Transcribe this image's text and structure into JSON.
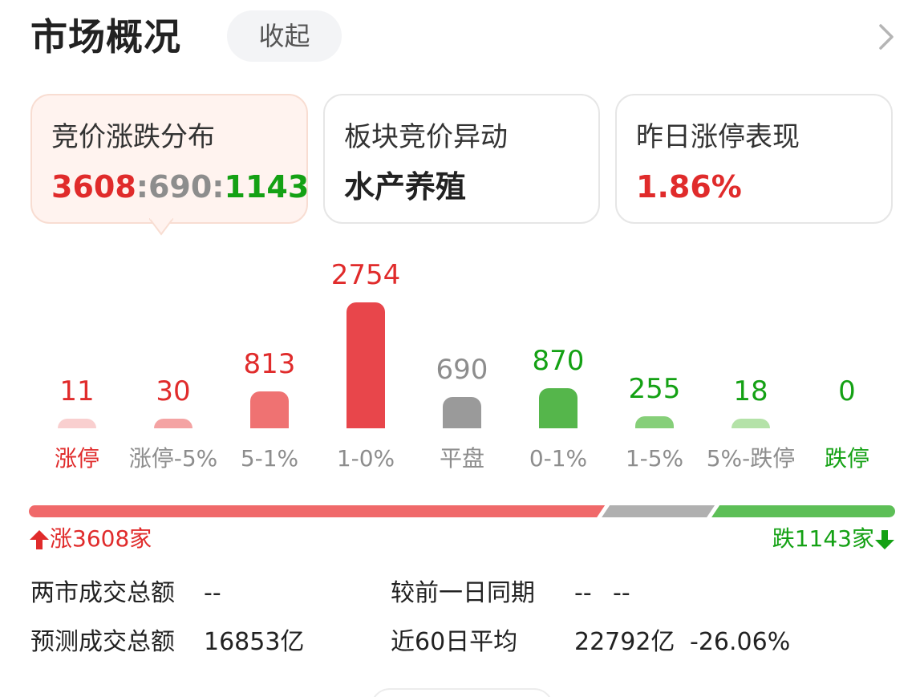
{
  "header": {
    "title": "市场概况",
    "collapse_label": "收起"
  },
  "cards": [
    {
      "title": "竞价涨跌分布",
      "value_parts": [
        {
          "text": "3608",
          "tone": "red"
        },
        {
          "text": ":",
          "tone": "gray"
        },
        {
          "text": "690",
          "tone": "gray"
        },
        {
          "text": ":",
          "tone": "gray"
        },
        {
          "text": "1143",
          "tone": "green"
        }
      ],
      "active": true
    },
    {
      "title": "板块竞价异动",
      "value_parts": [
        {
          "text": "水产养殖",
          "tone": "dark"
        }
      ],
      "active": false
    },
    {
      "title": "昨日涨停表现",
      "value_parts": [
        {
          "text": "1.86%",
          "tone": "red"
        }
      ],
      "active": false
    }
  ],
  "chart_data": {
    "type": "bar",
    "categories": [
      "涨停",
      "涨停-5%",
      "5-1%",
      "1-0%",
      "平盘",
      "0-1%",
      "1-5%",
      "5%-跌停",
      "跌停"
    ],
    "values": [
      11,
      30,
      813,
      2754,
      690,
      870,
      255,
      18,
      0
    ],
    "value_colors": [
      "#e02b2b",
      "#e02b2b",
      "#e02b2b",
      "#e02b2b",
      "#8d8d8d",
      "#14a114",
      "#14a114",
      "#14a114",
      "#14a114"
    ],
    "bar_colors": [
      "#f9cfcf",
      "#f4a3a3",
      "#ef7272",
      "#e8464b",
      "#9a9a9a",
      "#55b64b",
      "#86cf79",
      "#b4e2a8",
      "#d7f0d0"
    ],
    "label_colors": [
      "#e02b2b",
      "#8d8d8d",
      "#8d8d8d",
      "#8d8d8d",
      "#8d8d8d",
      "#8d8d8d",
      "#8d8d8d",
      "#8d8d8d",
      "#14a114"
    ]
  },
  "breadth": {
    "up": 3608,
    "flat": 690,
    "down": 1143,
    "up_label": "涨3608家",
    "down_label": "跌1143家",
    "colors": {
      "up": "#f0696a",
      "flat": "#b0b0b0",
      "down": "#5dbf57"
    }
  },
  "stats": {
    "turnover_label": "两市成交总额",
    "turnover_value": "--",
    "prev_label": "较前一日同期",
    "prev_value": "--",
    "prev_change": "--",
    "forecast_label": "预测成交总额",
    "forecast_value": "16853亿",
    "avg60_label": "近60日平均",
    "avg60_value": "22792亿",
    "avg60_change": "-26.06%"
  }
}
